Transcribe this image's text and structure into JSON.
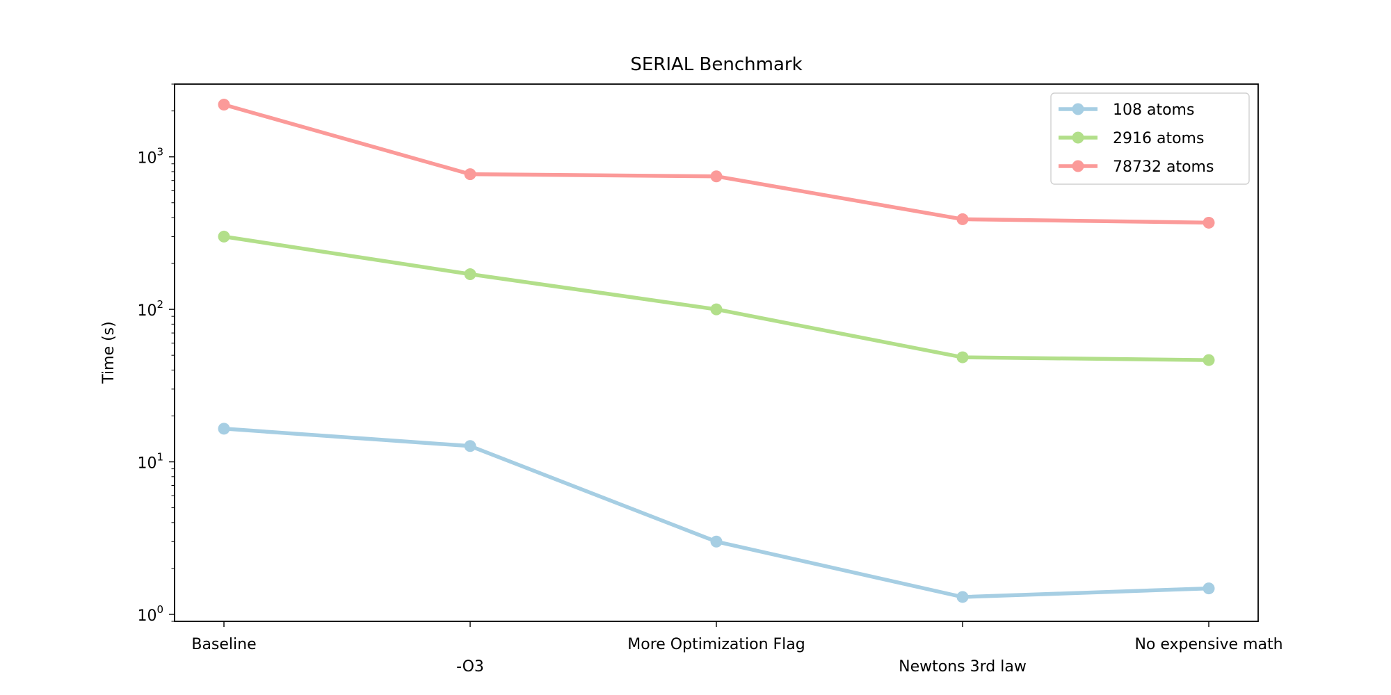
{
  "chart_data": {
    "type": "line",
    "title": "SERIAL Benchmark",
    "xlabel": "",
    "ylabel": "Time (s)",
    "yscale": "log",
    "ylim": [
      0.9,
      3000
    ],
    "y_ticks": [
      {
        "value": 1,
        "base": "10",
        "exp": "0"
      },
      {
        "value": 10,
        "base": "10",
        "exp": "1"
      },
      {
        "value": 100,
        "base": "10",
        "exp": "2"
      },
      {
        "value": 1000,
        "base": "10",
        "exp": "3"
      }
    ],
    "categories": [
      "Baseline",
      "-O3",
      "More Optimization Flag",
      "Newtons 3rd law",
      "No expensive math"
    ],
    "grid": false,
    "legend_position": "top-right",
    "series": [
      {
        "name": "108 atoms",
        "color": "#a6cee3",
        "values": [
          16.5,
          12.7,
          3.0,
          1.3,
          1.48
        ]
      },
      {
        "name": "2916 atoms",
        "color": "#b2df8a",
        "values": [
          300,
          170,
          100,
          48.5,
          46.5
        ]
      },
      {
        "name": "78732 atoms",
        "color": "#fb9a99",
        "values": [
          2200,
          770,
          745,
          390,
          370
        ]
      }
    ]
  }
}
